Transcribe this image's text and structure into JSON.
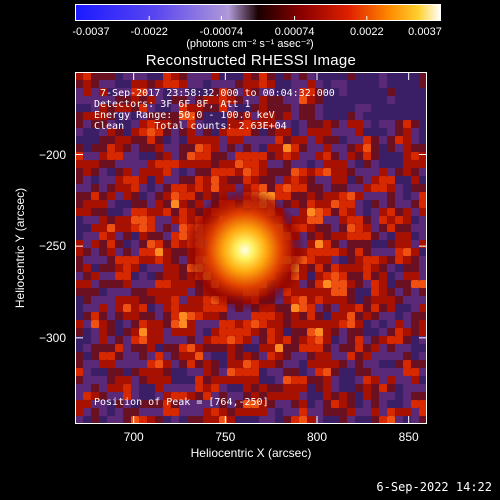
{
  "colorbar": {
    "ticks": [
      "-0.0037",
      "-0.0022",
      "-0.00074",
      "0.00074",
      "0.0022",
      "0.0037"
    ],
    "tick_values": [
      -0.0037,
      -0.0022,
      -0.00074,
      0.00074,
      0.0022,
      0.0037
    ],
    "range": [
      -0.0037,
      0.0037
    ],
    "unit_label": "(photons cm⁻² s⁻¹ asec⁻²)"
  },
  "title": "Reconstructed RHESSI Image",
  "info": {
    "line1": " 7-Sep-2017 23:58:32.000 to 00:04:32.000",
    "line2": "Detectors: 3F 6F 8F, Att 1",
    "line3": "Energy Range: 50.0 - 100.0 keV",
    "line4": "Clean     Total counts: 2.63E+04",
    "peak": "Position of Peak = [764,-250]"
  },
  "chart_data": {
    "type": "heatmap",
    "title": "Reconstructed RHESSI Image",
    "xlabel": "Heliocentric X (arcsec)",
    "ylabel": "Heliocentric Y (arcsec)",
    "xlim": [
      668,
      860
    ],
    "ylim": [
      -347,
      -155
    ],
    "x_ticks": [
      700,
      750,
      800,
      850
    ],
    "y_ticks": [
      -200,
      -250,
      -300
    ],
    "x_tick_labels": [
      "700",
      "750",
      "800",
      "850"
    ],
    "y_tick_labels": [
      "−200",
      "−250",
      "−300"
    ],
    "peak": [
      764,
      -250
    ],
    "colormap": "red-temperature",
    "value_range": [
      -0.0037,
      0.0037
    ]
  },
  "footer": {
    "timestamp": "6-Sep-2022 14:22"
  }
}
